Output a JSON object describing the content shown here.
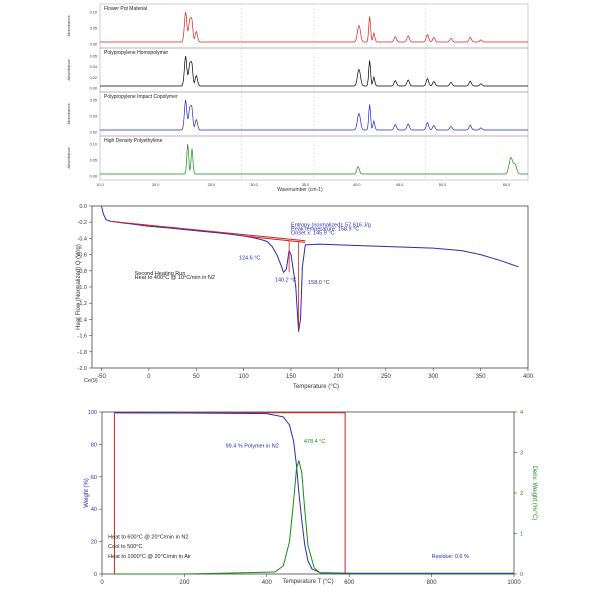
{
  "ir": {
    "x_ticks": [
      "10.0",
      "20.0",
      "25.0",
      "30.0",
      "35.0",
      "40.0",
      "45.0",
      "50.0",
      "60.0"
    ],
    "xlabel": "Wavenumber (cm-1)",
    "panels": [
      {
        "name": "Flower Pot Material",
        "color": "#e0201c",
        "ylabel": "Absorbance",
        "y_ticks": [
          "0.10",
          "0.05",
          "0.00"
        ]
      },
      {
        "name": "Polypropylene Homopolymer",
        "color": "#000000",
        "ylabel": "Absorbance",
        "y_ticks": [
          "0.05",
          "0.04",
          "0.02",
          "0.00"
        ]
      },
      {
        "name": "Polypropylene Impact Copolymer",
        "color": "#1f28c8",
        "ylabel": "Absorbance",
        "y_ticks": [
          "0.05",
          "0.03",
          "0.02"
        ]
      },
      {
        "name": "High Density Polyethylene",
        "color": "#1a8a1a",
        "ylabel": "Absorbance",
        "y_ticks": [
          "0.10",
          "0.05",
          "0.00"
        ]
      }
    ]
  },
  "chart_data": [
    {
      "type": "line",
      "title": "",
      "xlabel": "Temperature (°C)",
      "ylabel": "Heat Flow (Normalized) Q (W/g)",
      "xlim": [
        -60,
        400
      ],
      "ylim": [
        -2.0,
        0.0
      ],
      "x_ticks": [
        "-50",
        "0",
        "50",
        "100",
        "150",
        "200",
        "250",
        "300",
        "350",
        "400"
      ],
      "y_ticks": [
        "0.0",
        "-0.2",
        "-0.4",
        "-0.6",
        "-0.8",
        "-1.0",
        "-1.2",
        "-1.4",
        "-1.6",
        "-1.8",
        "-2.0"
      ],
      "corner_label": "Ce(9)",
      "series": [
        {
          "color": "#2b2bb0",
          "x": [
            -50,
            -48,
            -45,
            -40,
            -20,
            0,
            20,
            50,
            80,
            100,
            110,
            120,
            125,
            130,
            135,
            140,
            142,
            145,
            148,
            150,
            155,
            158,
            160,
            162,
            165,
            180,
            200,
            250,
            300,
            330,
            350,
            370,
            390
          ],
          "y": [
            0.0,
            -0.1,
            -0.17,
            -0.19,
            -0.22,
            -0.25,
            -0.27,
            -0.305,
            -0.34,
            -0.37,
            -0.39,
            -0.42,
            -0.44,
            -0.5,
            -0.6,
            -0.75,
            -0.82,
            -0.78,
            -0.55,
            -0.6,
            -1.0,
            -1.55,
            -1.4,
            -0.75,
            -0.48,
            -0.47,
            -0.48,
            -0.5,
            -0.52,
            -0.55,
            -0.6,
            -0.67,
            -0.75
          ]
        },
        {
          "color": "#d02020",
          "x": [
            -40,
            165
          ],
          "y": [
            -0.19,
            -0.43
          ]
        },
        {
          "color": "#d02020",
          "x": [
            100,
            165
          ],
          "y": [
            -0.37,
            -0.45
          ]
        }
      ],
      "annotations": [
        {
          "text": "Entropy (normalized): 57.616 J/g",
          "x": 150,
          "y": -0.25
        },
        {
          "text": "Peak temperature: 158.9 °C",
          "x": 150,
          "y": -0.3
        },
        {
          "text": "Onset x: 145.9 °C",
          "x": 150,
          "y": -0.35
        },
        {
          "text": "124.6 °C",
          "x": 95,
          "y": -0.66
        },
        {
          "text": "140.2 °C",
          "x": 133,
          "y": -0.93
        },
        {
          "text": "158.0 °C",
          "x": 168,
          "y": -0.96
        },
        {
          "text": "Second Heating Run",
          "x": -15,
          "y": -0.85
        },
        {
          "text": "Heat to 400°C @ 10°C/min in N2",
          "x": -15,
          "y": -0.9
        }
      ]
    },
    {
      "type": "line",
      "title": "",
      "xlabel": "Temperature T (°C)",
      "ylabel": "Weight (%)",
      "ylabel_right": "Deriv. Weight (%/°C)",
      "xlim": [
        0,
        1000
      ],
      "ylim": [
        0,
        100
      ],
      "ylim_right": [
        0,
        4
      ],
      "x_ticks": [
        "0",
        "200",
        "400",
        "600",
        "800",
        "1000"
      ],
      "y_ticks": [
        "0",
        "20",
        "40",
        "60",
        "80",
        "100"
      ],
      "y_ticks_right": [
        "0",
        "1",
        "2",
        "3",
        "4"
      ],
      "series": [
        {
          "color": "#d02020",
          "axis": "left",
          "x": [
            30,
            30,
            40,
            590,
            590,
            600
          ],
          "y": [
            0,
            99.5,
            99.5,
            99.5,
            0,
            0
          ]
        },
        {
          "color": "#2b2bb0",
          "axis": "left",
          "x": [
            30,
            200,
            400,
            440,
            455,
            465,
            472,
            478,
            485,
            492,
            500,
            510,
            530,
            600,
            800,
            1000
          ],
          "y": [
            99.5,
            99.4,
            99,
            97,
            92,
            82,
            67,
            50,
            33,
            18,
            8,
            3,
            0.8,
            0.5,
            0.5,
            0.5
          ]
        },
        {
          "color": "#1a8a1a",
          "axis": "right",
          "x": [
            30,
            200,
            420,
            440,
            455,
            465,
            472,
            478,
            485,
            492,
            500,
            515,
            530,
            600,
            1000
          ],
          "y": [
            0,
            0,
            0.05,
            0.2,
            0.8,
            1.8,
            2.6,
            2.8,
            2.5,
            1.6,
            0.7,
            0.15,
            0.02,
            0,
            0
          ]
        }
      ],
      "annotations": [
        {
          "text": "99.4 % Polymer in N2",
          "x": 300,
          "y": 78
        },
        {
          "text": "478.4 °C",
          "x": 490,
          "y": 81
        },
        {
          "text": "Heat to 600°C @ 20°C/min in N2",
          "x": 15,
          "y": 22
        },
        {
          "text": "Cool to 500°C",
          "x": 15,
          "y": 16
        },
        {
          "text": "Heat to 1000°C @ 20°C/min in Air",
          "x": 15,
          "y": 10
        },
        {
          "text": "Residue: 0.6 %",
          "x": 800,
          "y": 10
        }
      ]
    }
  ]
}
